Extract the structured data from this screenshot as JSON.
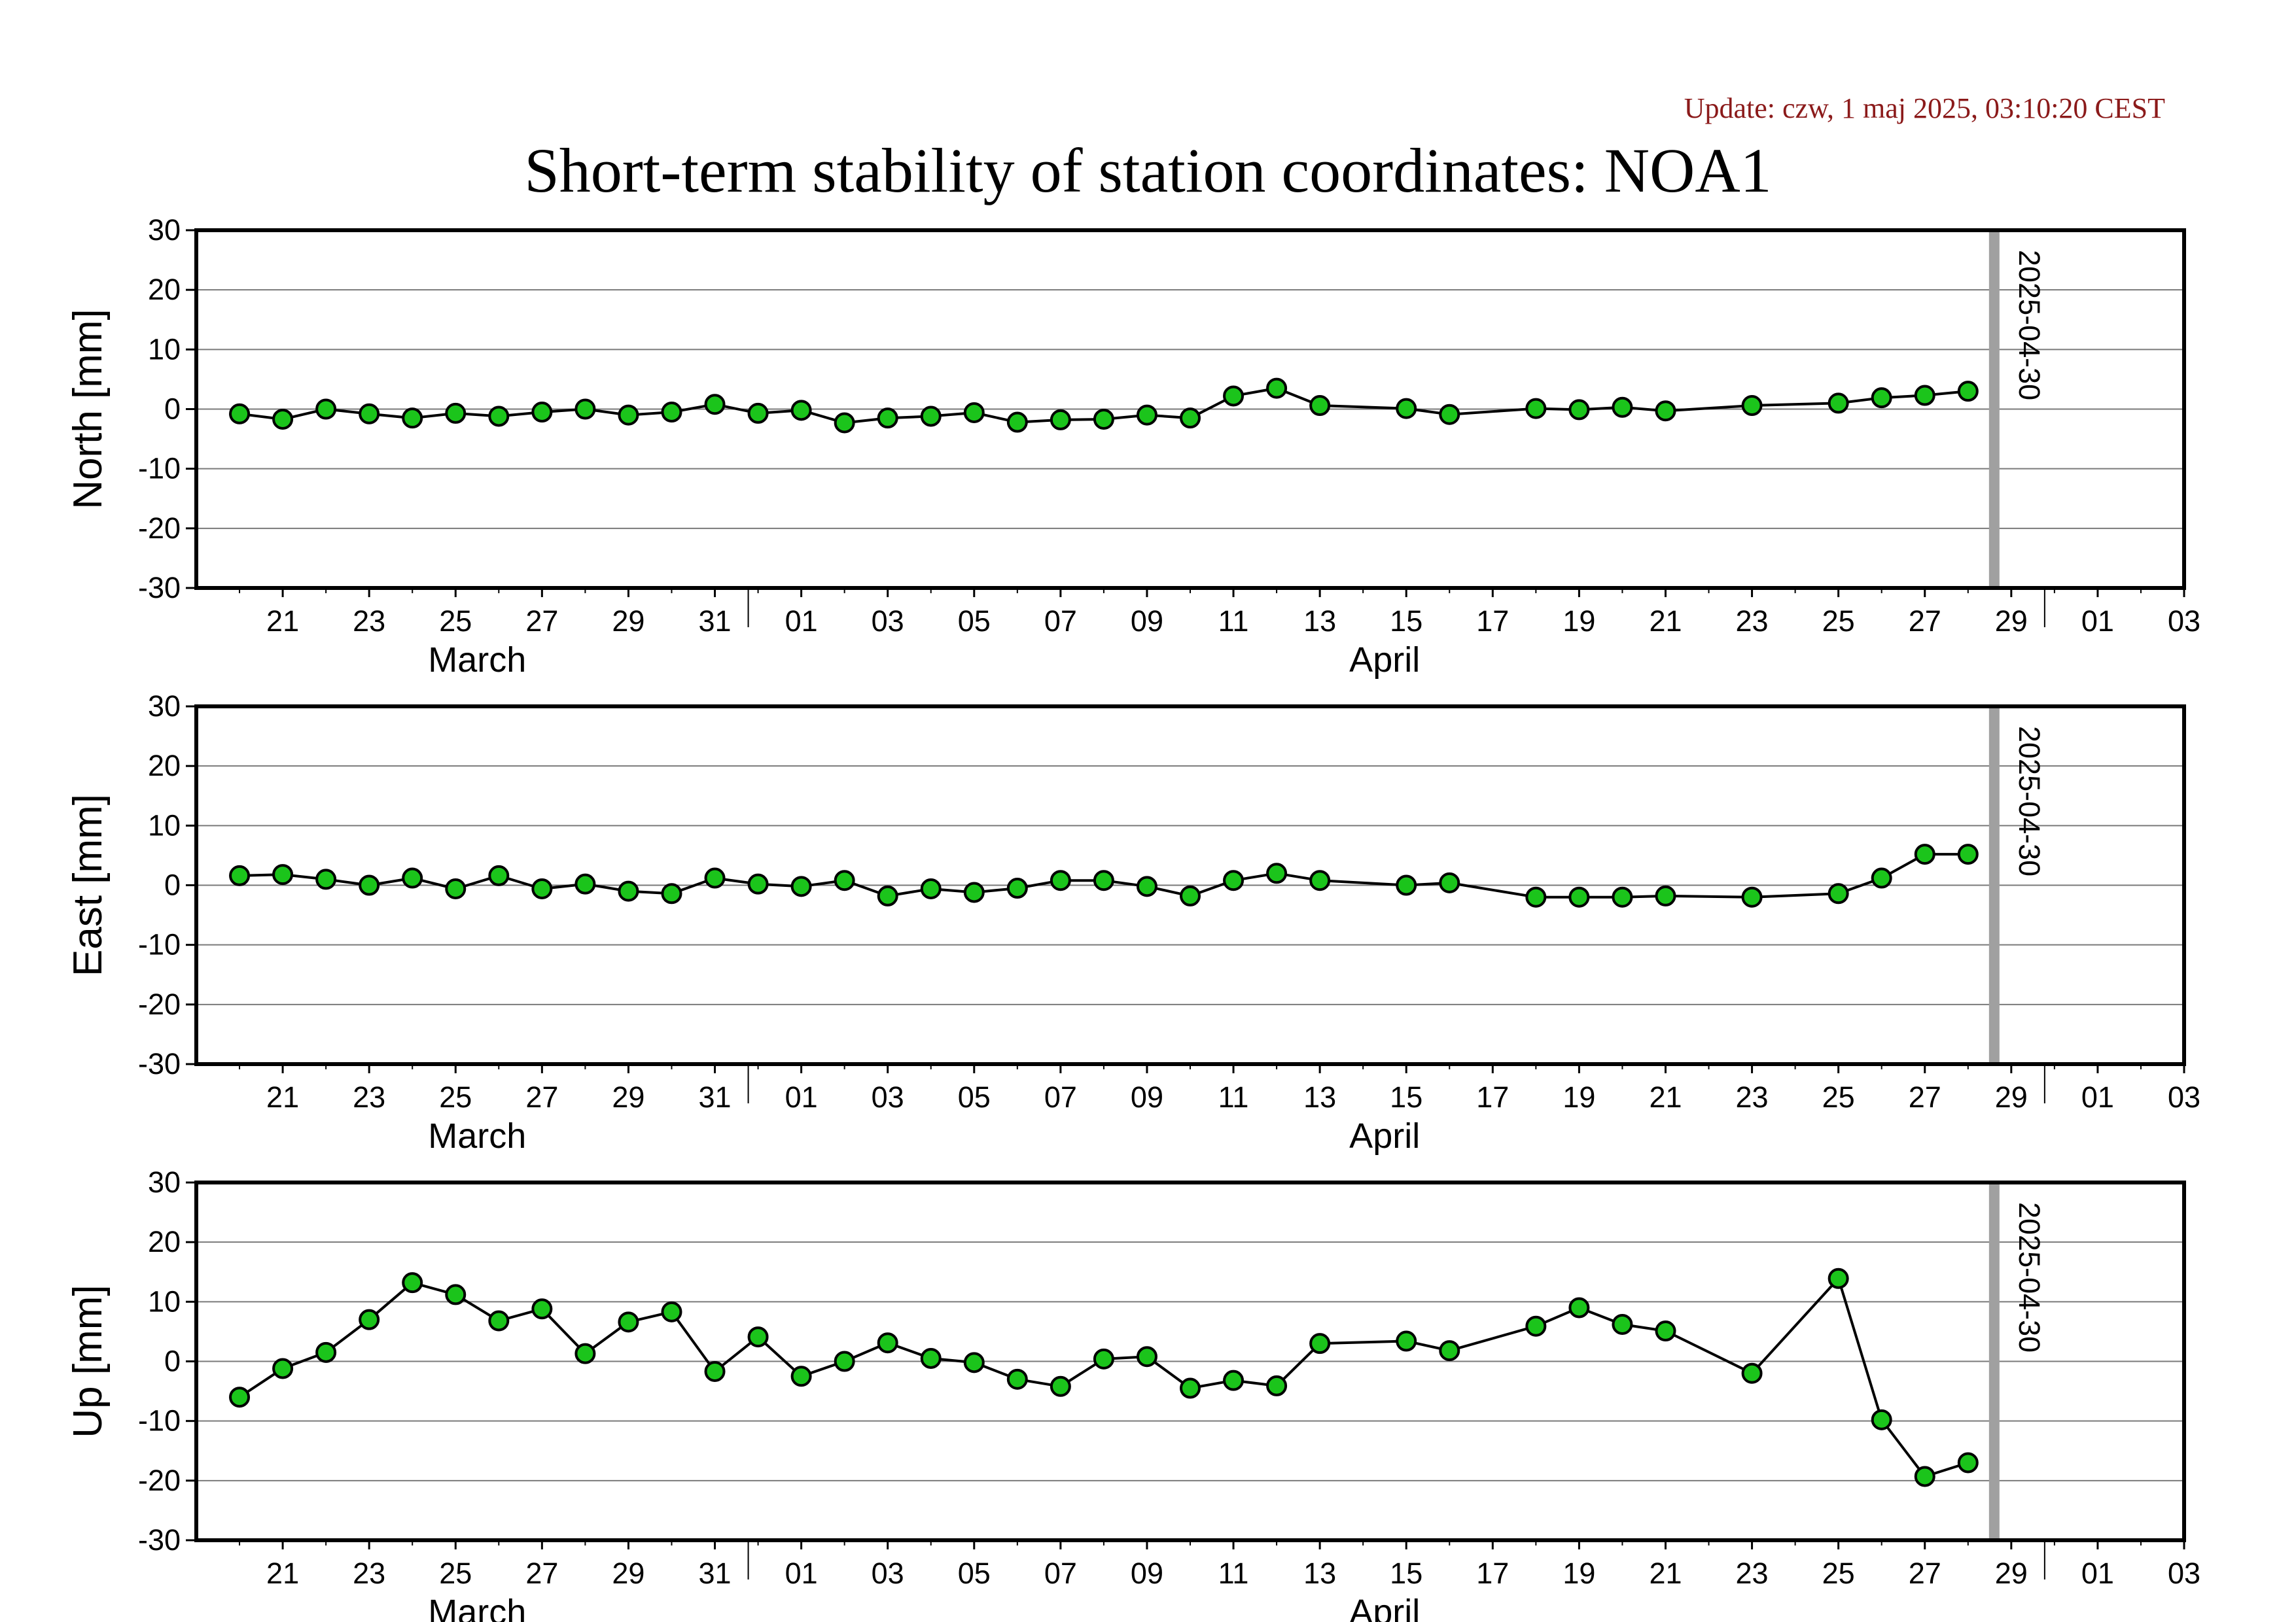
{
  "header": {
    "update": "Update: czw, 1 maj 2025, 03:10:20 CEST",
    "title": "Short-term stability of station coordinates: NOA1"
  },
  "colors": {
    "marker": "#1bc41b",
    "reference_line": "#a0a0a0",
    "update_text": "#8b1a1a"
  },
  "chart_data": [
    {
      "type": "line",
      "ylabel": "North [mm]",
      "ylim": [
        -30,
        30
      ],
      "yticks": [
        30,
        20,
        10,
        0,
        -10,
        -20,
        -30
      ],
      "xlim": [
        "2025-03-19",
        "2025-05-04"
      ],
      "grid": true,
      "marker_line_label": "2025-04-30",
      "x_tick_labels": [
        "21",
        "23",
        "25",
        "27",
        "29",
        "31",
        "01",
        "03",
        "05",
        "07",
        "09",
        "11",
        "13",
        "15",
        "17",
        "19",
        "21",
        "23",
        "25",
        "27",
        "29",
        "01",
        "03"
      ],
      "month_labels": [
        "March",
        "April"
      ],
      "x": [
        "2025-03-20",
        "2025-03-21",
        "2025-03-22",
        "2025-03-23",
        "2025-03-24",
        "2025-03-25",
        "2025-03-26",
        "2025-03-27",
        "2025-03-28",
        "2025-03-29",
        "2025-03-30",
        "2025-03-31",
        "2025-04-01",
        "2025-04-02",
        "2025-04-03",
        "2025-04-04",
        "2025-04-05",
        "2025-04-06",
        "2025-04-07",
        "2025-04-08",
        "2025-04-09",
        "2025-04-10",
        "2025-04-11",
        "2025-04-12",
        "2025-04-13",
        "2025-04-14",
        "2025-04-16",
        "2025-04-17",
        "2025-04-19",
        "2025-04-20",
        "2025-04-21",
        "2025-04-22",
        "2025-04-24",
        "2025-04-26",
        "2025-04-27",
        "2025-04-28",
        "2025-04-29"
      ],
      "y": [
        -0.8,
        -1.7,
        0,
        -0.8,
        -1.5,
        -0.7,
        -1.2,
        -0.5,
        0,
        -1,
        -0.5,
        0.8,
        -0.7,
        -0.2,
        -2.3,
        -1.5,
        -1.2,
        -0.6,
        -2.2,
        -1.8,
        -1.7,
        -1,
        -1.5,
        2.2,
        3.5,
        0.6,
        0.1,
        -0.9,
        0.1,
        -0.1,
        0.3,
        -0.3,
        0.6,
        1,
        1.9,
        2.3,
        3
      ]
    },
    {
      "type": "line",
      "ylabel": "East [mm]",
      "ylim": [
        -30,
        30
      ],
      "yticks": [
        30,
        20,
        10,
        0,
        -10,
        -20,
        -30
      ],
      "xlim": [
        "2025-03-19",
        "2025-05-04"
      ],
      "grid": true,
      "marker_line_label": "2025-04-30",
      "x_tick_labels": [
        "21",
        "23",
        "25",
        "27",
        "29",
        "31",
        "01",
        "03",
        "05",
        "07",
        "09",
        "11",
        "13",
        "15",
        "17",
        "19",
        "21",
        "23",
        "25",
        "27",
        "29",
        "01",
        "03"
      ],
      "month_labels": [
        "March",
        "April"
      ],
      "x": [
        "2025-03-20",
        "2025-03-21",
        "2025-03-22",
        "2025-03-23",
        "2025-03-24",
        "2025-03-25",
        "2025-03-26",
        "2025-03-27",
        "2025-03-28",
        "2025-03-29",
        "2025-03-30",
        "2025-03-31",
        "2025-04-01",
        "2025-04-02",
        "2025-04-03",
        "2025-04-04",
        "2025-04-05",
        "2025-04-06",
        "2025-04-07",
        "2025-04-08",
        "2025-04-09",
        "2025-04-10",
        "2025-04-11",
        "2025-04-12",
        "2025-04-13",
        "2025-04-14",
        "2025-04-16",
        "2025-04-17",
        "2025-04-19",
        "2025-04-20",
        "2025-04-21",
        "2025-04-22",
        "2025-04-24",
        "2025-04-26",
        "2025-04-27",
        "2025-04-28",
        "2025-04-29"
      ],
      "y": [
        1.6,
        1.8,
        1,
        0,
        1.2,
        -0.6,
        1.6,
        -0.6,
        0.2,
        -1,
        -1.4,
        1.2,
        0.2,
        -0.2,
        0.8,
        -1.8,
        -0.6,
        -1.2,
        -0.5,
        0.8,
        0.8,
        -0.2,
        -1.8,
        0.8,
        2,
        0.8,
        0,
        0.4,
        -2,
        -2,
        -2,
        -1.8,
        -2,
        -1.4,
        1.2,
        5.2,
        5.2
      ]
    },
    {
      "type": "line",
      "ylabel": "Up [mm]",
      "ylim": [
        -30,
        30
      ],
      "yticks": [
        30,
        20,
        10,
        0,
        -10,
        -20,
        -30
      ],
      "xlim": [
        "2025-03-19",
        "2025-05-04"
      ],
      "grid": true,
      "marker_line_label": "2025-04-30",
      "x_tick_labels": [
        "21",
        "23",
        "25",
        "27",
        "29",
        "31",
        "01",
        "03",
        "05",
        "07",
        "09",
        "11",
        "13",
        "15",
        "17",
        "19",
        "21",
        "23",
        "25",
        "27",
        "29",
        "01",
        "03"
      ],
      "month_labels": [
        "March",
        "April"
      ],
      "x": [
        "2025-03-20",
        "2025-03-21",
        "2025-03-22",
        "2025-03-23",
        "2025-03-24",
        "2025-03-25",
        "2025-03-26",
        "2025-03-27",
        "2025-03-28",
        "2025-03-29",
        "2025-03-30",
        "2025-03-31",
        "2025-04-01",
        "2025-04-02",
        "2025-04-03",
        "2025-04-04",
        "2025-04-05",
        "2025-04-06",
        "2025-04-07",
        "2025-04-08",
        "2025-04-09",
        "2025-04-10",
        "2025-04-11",
        "2025-04-12",
        "2025-04-13",
        "2025-04-14",
        "2025-04-16",
        "2025-04-17",
        "2025-04-19",
        "2025-04-20",
        "2025-04-21",
        "2025-04-22",
        "2025-04-24",
        "2025-04-26",
        "2025-04-27",
        "2025-04-28",
        "2025-04-29"
      ],
      "y": [
        -6,
        -1.2,
        1.5,
        7,
        13.2,
        11.2,
        6.8,
        8.8,
        1.3,
        6.6,
        8.3,
        -1.7,
        4.1,
        -2.5,
        0,
        3.1,
        0.5,
        -0.2,
        -3,
        -4.2,
        0.4,
        0.8,
        -4.5,
        -3.2,
        -4.1,
        3,
        3.4,
        1.8,
        5.9,
        9,
        6.2,
        5.1,
        -2,
        13.9,
        -9.8,
        -19.3,
        -17
      ]
    }
  ]
}
